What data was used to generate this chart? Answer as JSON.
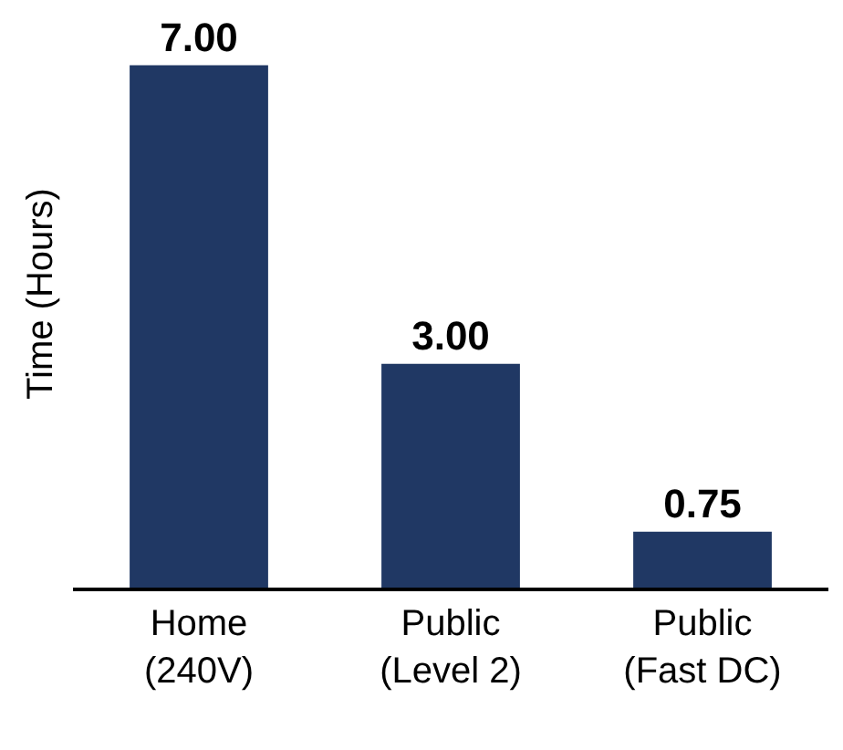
{
  "chart_data": {
    "type": "bar",
    "ylabel": "Time (Hours)",
    "categories": [
      "Home (240V)",
      "Public (Level 2)",
      "Public (Fast DC)"
    ],
    "values": [
      7.0,
      3.0,
      0.75
    ],
    "value_labels": [
      "7.00",
      "3.00",
      "0.75"
    ],
    "color": "#203864"
  }
}
